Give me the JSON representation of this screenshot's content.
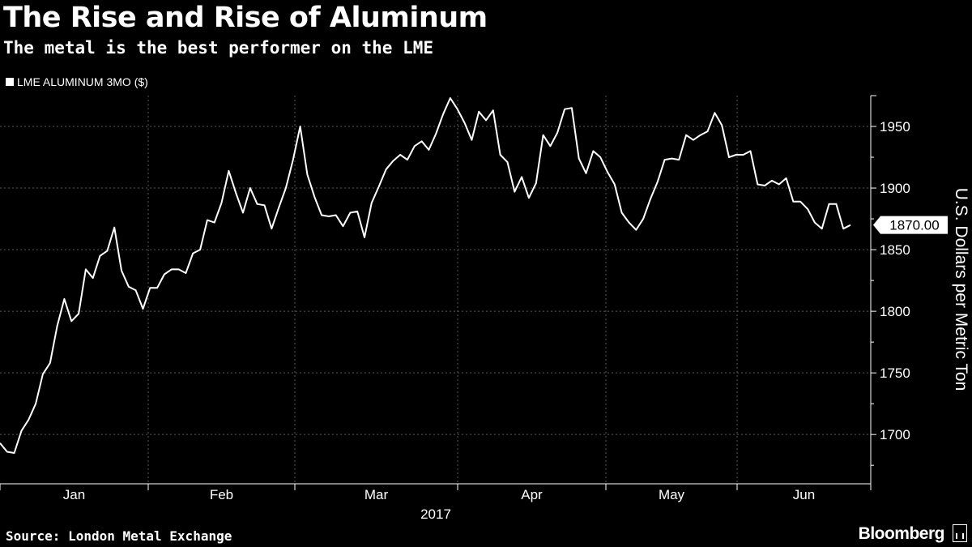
{
  "title": "The Rise and Rise of Aluminum",
  "subtitle": "The metal is the best performer on the LME",
  "source": "Source: London Metal Exchange",
  "brand": "Bloomberg",
  "colors": {
    "background": "#000000",
    "line": "#ffffff",
    "grid": "#5a5a5a"
  },
  "chart_data": {
    "type": "line",
    "ylabel": "U.S. Dollars per Metric Ton",
    "xlabel": "2017",
    "ylim": [
      1660,
      1975
    ],
    "yticks": [
      1700,
      1750,
      1800,
      1850,
      1900,
      1950
    ],
    "month_labels": [
      "Jan",
      "Feb",
      "Mar",
      "Apr",
      "May",
      "Jun"
    ],
    "last_value_label": "1870.00",
    "grid": true,
    "series": [
      {
        "name": "LME ALUMINUM 3MO ($)",
        "values": [
          1693,
          1686,
          1685,
          1703,
          1712,
          1725,
          1749,
          1758,
          1788,
          1810,
          1792,
          1798,
          1834,
          1827,
          1845,
          1849,
          1868,
          1833,
          1820,
          1817,
          1802,
          1819,
          1819,
          1830,
          1834,
          1834,
          1831,
          1847,
          1850,
          1874,
          1872,
          1888,
          1914,
          1896,
          1880,
          1900,
          1887,
          1886,
          1867,
          1884,
          1900,
          1923,
          1950,
          1911,
          1893,
          1878,
          1877,
          1878,
          1869,
          1880,
          1881,
          1860,
          1888,
          1901,
          1915,
          1922,
          1927,
          1923,
          1934,
          1938,
          1931,
          1944,
          1960,
          1973,
          1964,
          1953,
          1939,
          1962,
          1955,
          1963,
          1927,
          1921,
          1897,
          1909,
          1892,
          1904,
          1943,
          1934,
          1945,
          1964,
          1965,
          1924,
          1912,
          1930,
          1925,
          1913,
          1903,
          1880,
          1872,
          1866,
          1875,
          1891,
          1905,
          1923,
          1924,
          1923,
          1943,
          1939,
          1943,
          1946,
          1961,
          1951,
          1925,
          1927,
          1927,
          1930,
          1903,
          1902,
          1906,
          1903,
          1908,
          1889,
          1889,
          1883,
          1872,
          1867,
          1887,
          1887,
          1867,
          1870
        ]
      }
    ]
  }
}
